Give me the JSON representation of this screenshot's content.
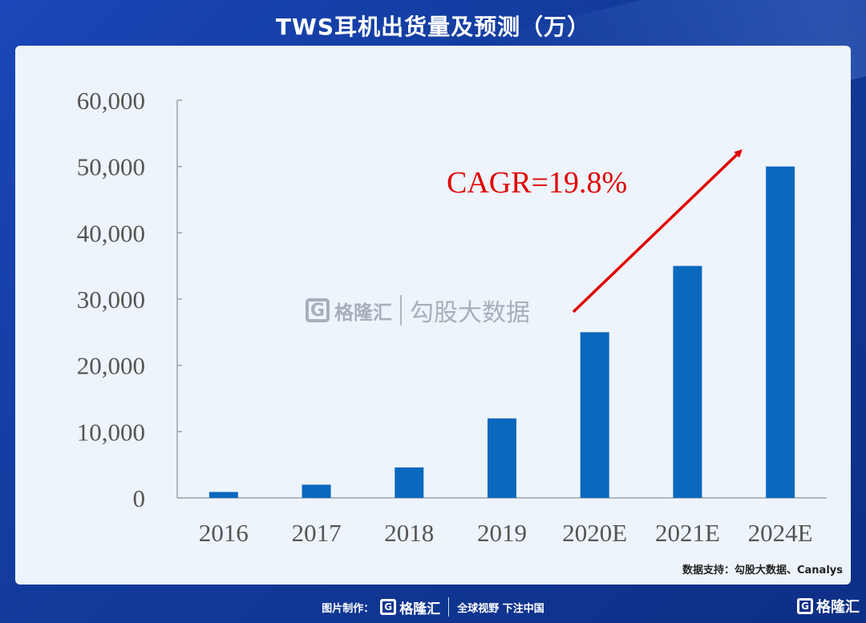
{
  "header": {
    "title": "TWS耳机出货量及预测（万）"
  },
  "chart_data": {
    "type": "bar",
    "categories": [
      "2016",
      "2017",
      "2018",
      "2019",
      "2020E",
      "2021E",
      "2024E"
    ],
    "values": [
      900,
      2000,
      4600,
      12000,
      25000,
      35000,
      50000
    ],
    "ylim": [
      0,
      60000
    ],
    "yticks": [
      "0",
      "10,000",
      "20,000",
      "30,000",
      "40,000",
      "50,000",
      "60,000"
    ],
    "annotation": "CAGR=19.8%",
    "bar_color": "#0a68be",
    "annotation_color": "#e00000"
  },
  "source": "数据支持：勾股大数据、Canalys",
  "watermark": {
    "logo_letter": "G",
    "brand": "格隆汇",
    "data_brand": "勾股大数据"
  },
  "footer": {
    "made_by_label": "图片制作：",
    "logo_letter": "G",
    "brand": "格隆汇",
    "slogan": "全球视野 下注中国",
    "corner_logo_letter": "G",
    "corner_brand": "格隆汇"
  }
}
